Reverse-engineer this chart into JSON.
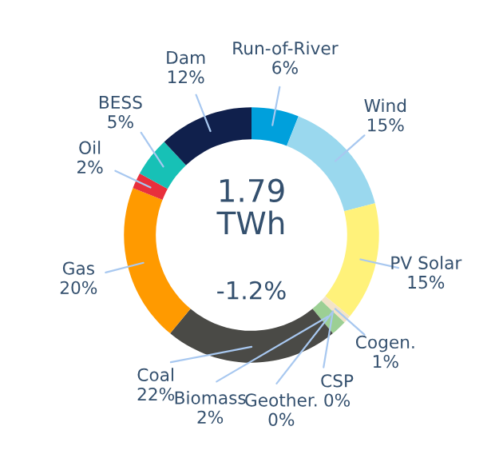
{
  "chart_data": {
    "type": "donut",
    "categories": [
      "Run-of-River",
      "Wind",
      "PV Solar",
      "Cogen.",
      "CSP",
      "Geother.",
      "Biomass",
      "Coal",
      "Gas",
      "Oil",
      "BESS",
      "Dam"
    ],
    "values": [
      6,
      15,
      15,
      1,
      0,
      0,
      2,
      22,
      20,
      2,
      5,
      12
    ],
    "colors": [
      "#00a0dc",
      "#9ad8ee",
      "#fff27a",
      "#f3e3c8",
      "#e8a030",
      "#7a5a3a",
      "#9ccf94",
      "#4a4a46",
      "#ff9a00",
      "#e8303c",
      "#17c1b6",
      "#10204c"
    ],
    "annotations": [
      "1.79\nTWh",
      "-1.2%"
    ],
    "value_labels": [
      "6%",
      "15%",
      "15%",
      "1%",
      "0%",
      "0%",
      "2%",
      "22%",
      "20%",
      "2%",
      "5%",
      "12%"
    ],
    "legend": false
  }
}
